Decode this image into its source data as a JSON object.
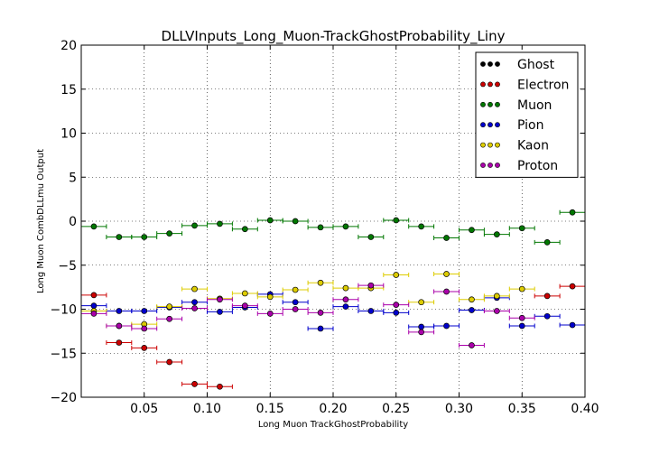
{
  "chart_data": {
    "type": "scatter",
    "title": "DLLVInputs_Long_Muon-TrackGhostProbability_Liny",
    "xlabel": "Long Muon TrackGhostProbability",
    "ylabel": "Long Muon CombDLLmu Output",
    "xlim": [
      0.0,
      0.4
    ],
    "ylim": [
      -20,
      20
    ],
    "xticks": [
      {
        "value": 0.05,
        "label": "0.05"
      },
      {
        "value": 0.1,
        "label": "0.10"
      },
      {
        "value": 0.15,
        "label": "0.15"
      },
      {
        "value": 0.2,
        "label": "0.20"
      },
      {
        "value": 0.25,
        "label": "0.25"
      },
      {
        "value": 0.3,
        "label": "0.30"
      },
      {
        "value": 0.35,
        "label": "0.35"
      },
      {
        "value": 0.4,
        "label": "0.40"
      }
    ],
    "yticks": [
      {
        "value": 20,
        "label": "20"
      },
      {
        "value": 15,
        "label": "15"
      },
      {
        "value": 10,
        "label": "10"
      },
      {
        "value": 5,
        "label": "5"
      },
      {
        "value": 0,
        "label": "0"
      },
      {
        "value": -5,
        "label": "−5"
      },
      {
        "value": -10,
        "label": "−10"
      },
      {
        "value": -15,
        "label": "−15"
      },
      {
        "value": -20,
        "label": "−20"
      }
    ],
    "grid": true,
    "legend": "top-right",
    "bin_halfwidth": 0.01,
    "x": [
      0.01,
      0.03,
      0.05,
      0.07,
      0.09,
      0.11,
      0.13,
      0.15,
      0.17,
      0.19,
      0.21,
      0.23,
      0.25,
      0.27,
      0.29,
      0.31,
      0.33,
      0.35,
      0.37,
      0.39
    ],
    "series": [
      {
        "name": "Ghost",
        "color": "#000000",
        "values": []
      },
      {
        "name": "Electron",
        "color": "#cc0000",
        "values": [
          -8.4,
          -13.8,
          -14.4,
          -16.0,
          -18.5,
          -18.8,
          null,
          null,
          null,
          null,
          null,
          null,
          null,
          null,
          null,
          null,
          null,
          null,
          -8.5,
          -7.4
        ]
      },
      {
        "name": "Muon",
        "color": "#007700",
        "values": [
          -0.6,
          -1.8,
          -1.8,
          -1.4,
          -0.5,
          -0.3,
          -0.9,
          0.1,
          0.0,
          -0.7,
          -0.6,
          -1.8,
          0.1,
          -0.6,
          -1.9,
          -1.0,
          -1.5,
          -0.8,
          -2.4,
          1.0
        ]
      },
      {
        "name": "Pion",
        "color": "#0000cc",
        "values": [
          -9.6,
          -10.2,
          -10.2,
          -9.8,
          -9.2,
          -10.3,
          -9.8,
          -8.3,
          -9.2,
          -12.2,
          -9.7,
          -10.2,
          -10.4,
          -12.0,
          -11.9,
          -10.1,
          -8.7,
          -11.9,
          -10.8,
          -11.8
        ]
      },
      {
        "name": "Kaon",
        "color": "#ddcc00",
        "values": [
          -10.2,
          -11.9,
          -11.7,
          -9.7,
          -7.7,
          -8.8,
          -8.2,
          -8.6,
          -7.8,
          -7.0,
          -7.6,
          -7.6,
          -6.1,
          -9.2,
          -6.0,
          -8.9,
          -8.5,
          -7.7,
          null,
          null
        ]
      },
      {
        "name": "Proton",
        "color": "#aa00aa",
        "values": [
          -10.5,
          -11.9,
          -12.2,
          -11.1,
          -9.9,
          -8.9,
          -9.6,
          -10.5,
          -10.0,
          -10.4,
          -8.9,
          -7.3,
          -9.5,
          -12.6,
          -8.0,
          -14.1,
          -10.2,
          -11.0,
          null,
          null
        ]
      }
    ]
  }
}
